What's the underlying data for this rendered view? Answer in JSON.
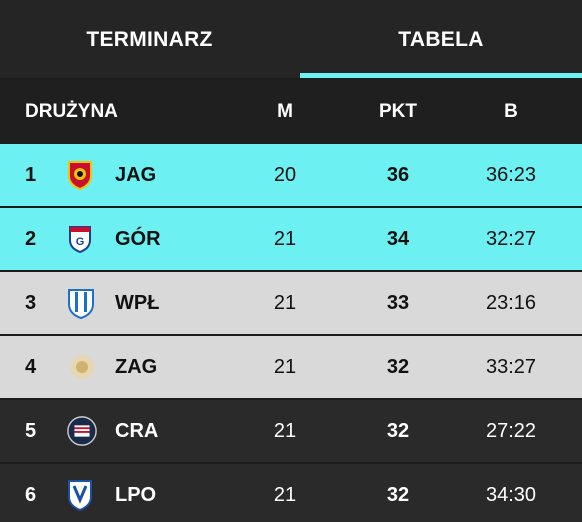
{
  "tabs": [
    "TERMINARZ",
    "TABELA"
  ],
  "table": {
    "header": [
      "DRUŻYNA",
      "M",
      "PKT",
      "B"
    ],
    "rows": [
      {
        "rank": 1,
        "team": "JAG",
        "m": 20,
        "pkt": 36,
        "b": "36:23"
      },
      {
        "rank": 2,
        "team": "GÓR",
        "m": 21,
        "pkt": 34,
        "b": "32:27"
      },
      {
        "rank": 3,
        "team": "WPŁ",
        "m": 21,
        "pkt": 33,
        "b": "23:16"
      },
      {
        "rank": 4,
        "team": "ZAG",
        "m": 21,
        "pkt": 32,
        "b": "33:27"
      },
      {
        "rank": 5,
        "team": "CRA",
        "m": 21,
        "pkt": 32,
        "b": "27:22"
      },
      {
        "rank": 6,
        "team": "LPO",
        "m": 21,
        "pkt": 32,
        "b": "34:30"
      }
    ]
  }
}
